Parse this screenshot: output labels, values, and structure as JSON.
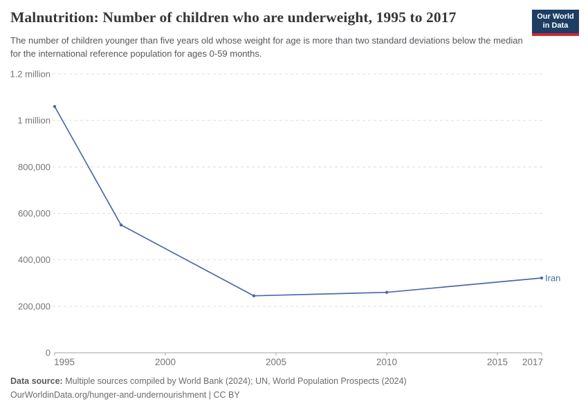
{
  "header": {
    "title": "Malnutrition: Number of children who are underweight, 1995 to 2017",
    "subtitle": "The number of children younger than five years old whose weight for age is more than two standard deviations below the median for the international reference population for ages 0-59 months.",
    "logo": {
      "line1": "Our World",
      "line2": "in Data"
    }
  },
  "chart_data": {
    "type": "line",
    "title": "Malnutrition: Number of children who are underweight, 1995 to 2017",
    "xlabel": "",
    "ylabel": "",
    "xlim": [
      1995,
      2017
    ],
    "ylim": [
      0,
      1200000
    ],
    "grid": "horizontal-dashed",
    "legend_position": "end-of-line-label",
    "x_ticks": [
      1995,
      2000,
      2005,
      2010,
      2015,
      2017
    ],
    "y_ticks": [
      {
        "value": 0,
        "label": "0"
      },
      {
        "value": 200000,
        "label": "200,000"
      },
      {
        "value": 400000,
        "label": "400,000"
      },
      {
        "value": 600000,
        "label": "600,000"
      },
      {
        "value": 800000,
        "label": "800,000"
      },
      {
        "value": 1000000,
        "label": "1 million"
      },
      {
        "value": 1200000,
        "label": "1.2 million"
      }
    ],
    "series": [
      {
        "name": "Iran",
        "color": "#4a68a8",
        "points": [
          {
            "year": 1995,
            "value": 1060000
          },
          {
            "year": 1998,
            "value": 550000
          },
          {
            "year": 2004,
            "value": 245000
          },
          {
            "year": 2010,
            "value": 260000
          },
          {
            "year": 2017,
            "value": 322000
          }
        ]
      }
    ]
  },
  "footer": {
    "source_label": "Data source:",
    "source_text": " Multiple sources compiled by World Bank (2024); UN, World Population Prospects (2024)",
    "attribution": "OurWorldinData.org/hunger-and-undernourishment | CC BY"
  },
  "colors": {
    "line": "#4a68a8",
    "grid": "#dcdcdc",
    "axis": "#a1a1a1",
    "tick_text": "#757575",
    "logo_bg": "#1d3d63",
    "logo_accent": "#d0273a"
  }
}
